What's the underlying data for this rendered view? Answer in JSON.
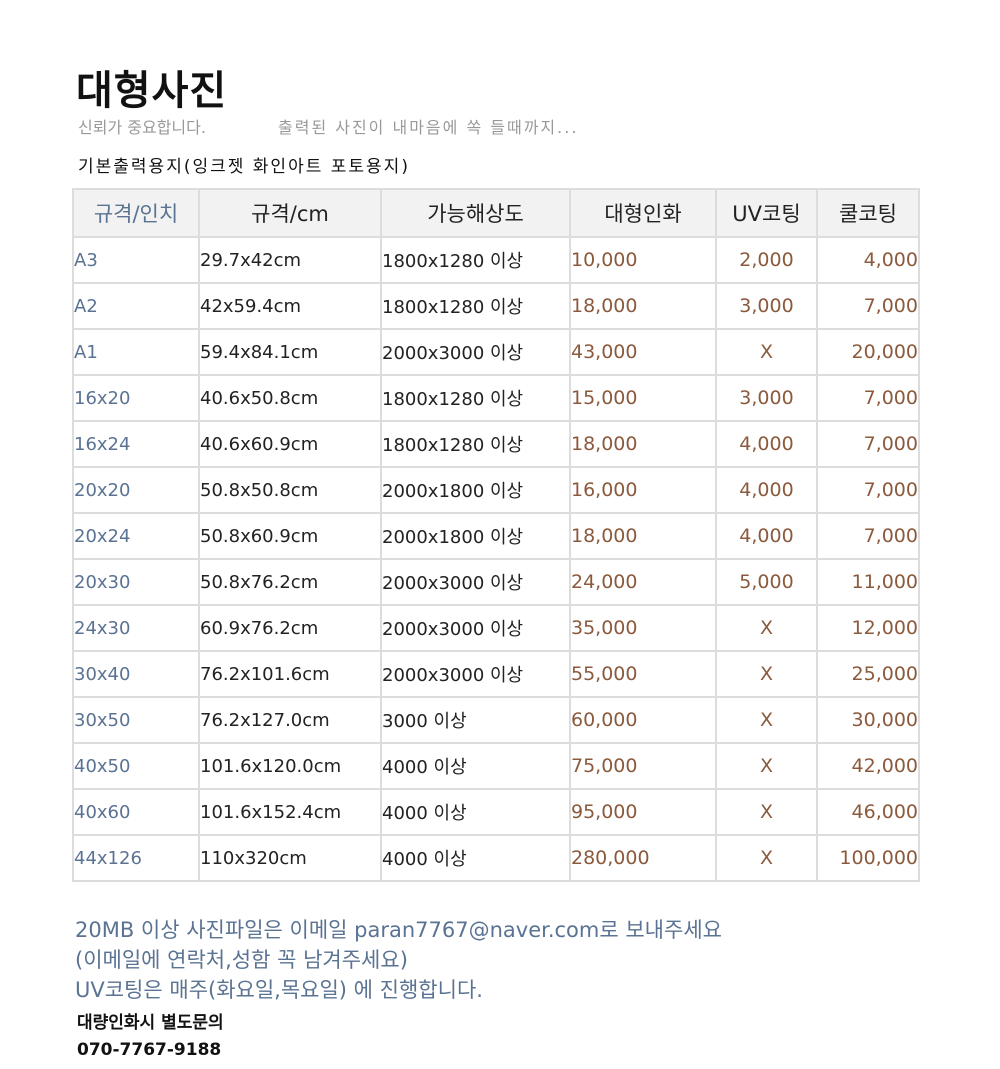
{
  "page": {
    "title": "대형사진",
    "subtitle_left": "신뢰가 중요합니다.",
    "subtitle_right": "출력된 사진이 내마음에 쏙 들때까지...",
    "section_label": "기본출력용지(잉크젯 화인아트 포토용지)"
  },
  "table": {
    "headers": [
      "규격/인치",
      "규격/cm",
      "가능해상도",
      "대형인화",
      "UV코팅",
      "쿨코팅"
    ],
    "rows": [
      [
        "A3",
        "29.7x42cm",
        "1800x1280 이상",
        "10,000",
        "2,000",
        "4,000"
      ],
      [
        "A2",
        "42x59.4cm",
        "1800x1280 이상",
        "18,000",
        "3,000",
        "7,000"
      ],
      [
        "A1",
        "59.4x84.1cm",
        "2000x3000 이상",
        "43,000",
        "X",
        "20,000"
      ],
      [
        "16x20",
        "40.6x50.8cm",
        "1800x1280 이상",
        "15,000",
        "3,000",
        "7,000"
      ],
      [
        "16x24",
        "40.6x60.9cm",
        "1800x1280 이상",
        "18,000",
        "4,000",
        "7,000"
      ],
      [
        "20x20",
        "50.8x50.8cm",
        "2000x1800 이상",
        "16,000",
        "4,000",
        "7,000"
      ],
      [
        "20x24",
        "50.8x60.9cm",
        "2000x1800 이상",
        "18,000",
        "4,000",
        "7,000"
      ],
      [
        "20x30",
        "50.8x76.2cm",
        "2000x3000 이상",
        "24,000",
        "5,000",
        "11,000"
      ],
      [
        "24x30",
        "60.9x76.2cm",
        "2000x3000 이상",
        "35,000",
        "X",
        "12,000"
      ],
      [
        "30x40",
        "76.2x101.6cm",
        "2000x3000 이상",
        "55,000",
        "X",
        "25,000"
      ],
      [
        "30x50",
        "76.2x127.0cm",
        "3000 이상",
        "60,000",
        "X",
        "30,000"
      ],
      [
        "40x50",
        "101.6x120.0cm",
        "4000 이상",
        "75,000",
        "X",
        "42,000"
      ],
      [
        "40x60",
        "101.6x152.4cm",
        "4000 이상",
        "95,000",
        "X",
        "46,000"
      ],
      [
        "44x126",
        "110x320cm",
        "4000 이상",
        "280,000",
        "X",
        "100,000"
      ]
    ]
  },
  "notes": [
    "20MB 이상 사진파일은 이메일 paran7767@naver.com로 보내주세요",
    "(이메일에 연락처,성함 꼭 남겨주세요)",
    "UV코팅은 매주(화요일,목요일) 에 진행합니다."
  ],
  "contact": {
    "label": "대량인화시 별도문의",
    "phone": "070-7767-9188"
  },
  "colors": {
    "accent_blue": "#5b7393",
    "price_brown": "#8b5a3c",
    "border": "#dcdcdc",
    "header_bg": "#f2f2f2"
  }
}
